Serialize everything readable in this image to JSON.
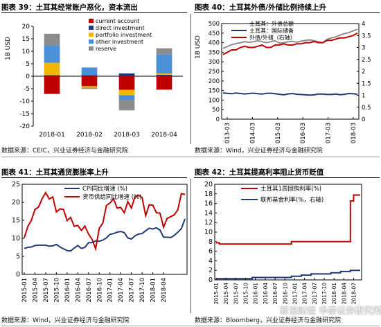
{
  "panels": [
    {
      "id": "p39",
      "title": "图表 39：土耳其经常账户恶化，资本流出",
      "source": "数据来源：CEIC，兴业证券经济与金融研究院"
    },
    {
      "id": "p40",
      "title": "图表 40：土耳其外债/外储比例持续上升",
      "source": "数据来源：Wind，兴业证券经济与金融研究院"
    },
    {
      "id": "p41",
      "title": "图表 41：土耳其通货膨胀率上升",
      "source": "数据来源：Wind，兴业证券经济与金融研究院"
    },
    {
      "id": "p42",
      "title": "图表 42：土耳其提高利率阻止货币贬值",
      "source": "数据来源：Bloomberg，兴业证券经济与金融研究院"
    }
  ],
  "watermark": "新浪财经 华泰证券研究所",
  "chart_data": [
    {
      "type": "bar",
      "stacked": true,
      "ylabel": "1B USD",
      "ylim": [
        -20,
        20
      ],
      "yticks": [
        "20",
        "15",
        "10",
        "5",
        "0",
        "-5",
        "-10",
        "-15",
        "-20"
      ],
      "categories": [
        "2018-01",
        "2018-02",
        "2018-03",
        "2018-04"
      ],
      "legend_position": "top-right",
      "series": [
        {
          "name": "current account",
          "color": "#c00000",
          "values": [
            -7.1,
            -4.0,
            -5.5,
            -5.4
          ]
        },
        {
          "name": "direct investment",
          "color": "#1f3a78",
          "values": [
            0.4,
            0.4,
            1.1,
            0.6
          ]
        },
        {
          "name": "portfolio investment",
          "color": "#f2b800",
          "values": [
            5.0,
            -0.6,
            -2.1,
            0.5
          ]
        },
        {
          "name": "other investment",
          "color": "#4a90d9",
          "values": [
            7.0,
            3.1,
            -2.0,
            7.7
          ]
        },
        {
          "name": "reserve",
          "color": "#8c8c8c",
          "values": [
            4.6,
            -0.5,
            -4.1,
            2.4
          ]
        }
      ]
    },
    {
      "type": "line",
      "ylabel": "1B USD",
      "ylim_left": [
        0,
        500
      ],
      "ylim_right": [
        0,
        4
      ],
      "yticks_left": [
        "500",
        "450",
        "400",
        "350",
        "300",
        "250",
        "200",
        "150",
        "100",
        "50",
        "0"
      ],
      "yticks_right": [
        "4",
        "3.5",
        "3",
        "2.5",
        "2",
        "1.5",
        "1",
        "0.5",
        "0"
      ],
      "xticks": [
        "2013-03",
        "2014-03",
        "2015-03",
        "2016-03",
        "2017-03",
        "2018-03"
      ],
      "series": [
        {
          "name": "土耳其：外债总额",
          "color": "#8c8c8c",
          "axis": "left",
          "values": [
            370,
            380,
            390,
            395,
            400,
            405,
            402,
            405,
            410,
            405,
            400,
            405,
            410,
            398,
            400,
            405,
            407,
            403,
            408,
            412,
            415,
            410,
            405,
            400,
            418,
            425,
            430,
            440,
            447,
            452,
            462,
            470
          ]
        },
        {
          "name": "土耳其：国际储备",
          "color": "#1f3a78",
          "axis": "left",
          "values": [
            137,
            135,
            133,
            137,
            134,
            132,
            134,
            136,
            133,
            131,
            135,
            136,
            133,
            130,
            127,
            132,
            134,
            130,
            129,
            127,
            126,
            127,
            132,
            131,
            129,
            129,
            131,
            128,
            130,
            134,
            133,
            130
          ]
        },
        {
          "name": "外债/外储（右轴）",
          "color": "#c00000",
          "axis": "right",
          "values": [
            2.7,
            2.8,
            2.9,
            2.9,
            3.0,
            3.05,
            3.0,
            3.0,
            3.05,
            3.1,
            3.0,
            3.0,
            3.1,
            3.1,
            3.15,
            3.1,
            3.1,
            3.15,
            3.15,
            3.2,
            3.2,
            3.25,
            3.2,
            3.2,
            3.3,
            3.3,
            3.35,
            3.4,
            3.4,
            3.45,
            3.5,
            3.6
          ]
        }
      ]
    },
    {
      "type": "line",
      "ylim": [
        0,
        25
      ],
      "yticks": [
        "25",
        "20",
        "15",
        "10",
        "5",
        "0"
      ],
      "xticks": [
        "2015-01",
        "2015-04",
        "2015-07",
        "2015-10",
        "2016-01",
        "2016-04",
        "2016-07",
        "2016-10",
        "2017-01",
        "2017-04",
        "2017-07",
        "2017-10",
        "2018-01",
        "2018-04"
      ],
      "series": [
        {
          "name": "CPI同比增速 (%)",
          "color": "#1f3a78",
          "values": [
            7.2,
            7.5,
            7.6,
            8.0,
            8.1,
            8.1,
            8.1,
            7.8,
            7.9,
            8.3,
            7.6,
            7.1,
            6.6,
            6.5,
            7.3,
            8.0,
            7.2,
            7.5,
            8.8,
            8.8,
            9.3,
            9.2,
            9.5,
            10.1,
            11.1,
            11.3,
            11.7,
            11.9,
            11.6,
            10.1,
            9.8,
            10.7,
            11.2,
            11.3,
            12.1,
            12.8,
            12.6,
            12.9,
            12.3,
            10.3,
            10.3,
            10.2,
            10.8,
            11.7,
            12.7,
            15.4
          ]
        },
        {
          "name": "货币供给同比增速 (%)",
          "color": "#c00000",
          "values": [
            10.1,
            13.3,
            15.0,
            18.0,
            18.7,
            21.0,
            22.7,
            20.9,
            21.5,
            17.3,
            18.2,
            18.0,
            14.9,
            15.8,
            13.3,
            13.6,
            12.2,
            13.4,
            11.2,
            9.7,
            7.1,
            12.8,
            14.2,
            19.1,
            19.8,
            21.0,
            18.4,
            18.6,
            17.1,
            20.2,
            18.4,
            21.5,
            22.0,
            21.3,
            16.3,
            19.3,
            19.2,
            17.1,
            17.0,
            13.1,
            15.5,
            16.0,
            16.5,
            17.9,
            22.4,
            22.2
          ]
        }
      ]
    },
    {
      "type": "line",
      "step": true,
      "ylim": [
        0,
        20
      ],
      "yticks": [
        "20",
        "18",
        "16",
        "14",
        "12",
        "10",
        "8",
        "6",
        "4",
        "2",
        "0"
      ],
      "xticks": [
        "2015-01",
        "2015-04",
        "2015-07",
        "2015-10",
        "2016-01",
        "2016-04",
        "2016-07",
        "2016-10",
        "2017-01",
        "2017-04",
        "2017-07",
        "2017-10",
        "2018-01",
        "2018-04",
        "2018-07"
      ],
      "series": [
        {
          "name": "土耳其1周回购利率(%)",
          "color": "#c00000",
          "values": [
            7.75,
            7.5,
            7.5,
            7.5,
            7.5,
            7.5,
            7.5,
            7.5,
            7.5,
            7.5,
            7.5,
            7.5,
            7.5,
            7.5,
            7.5,
            7.5,
            7.5,
            7.5,
            7.5,
            7.5,
            7.5,
            7.5,
            7.5,
            8.0,
            8.0,
            8.0,
            8.0,
            8.0,
            8.0,
            8.0,
            8.0,
            8.0,
            8.0,
            8.0,
            8.0,
            8.0,
            8.0,
            8.0,
            8.0,
            8.0,
            8.0,
            16.5,
            17.75,
            17.75,
            17.75
          ]
        },
        {
          "name": "联邦基金利率(%，右轴)",
          "color": "#1f3a78",
          "values": [
            0.25,
            0.25,
            0.25,
            0.25,
            0.25,
            0.25,
            0.25,
            0.25,
            0.25,
            0.25,
            0.25,
            0.5,
            0.5,
            0.5,
            0.5,
            0.5,
            0.5,
            0.5,
            0.5,
            0.5,
            0.5,
            0.5,
            0.5,
            0.75,
            0.75,
            0.75,
            1.0,
            1.0,
            1.0,
            1.25,
            1.25,
            1.25,
            1.25,
            1.25,
            1.25,
            1.5,
            1.5,
            1.5,
            1.75,
            1.75,
            1.75,
            2.0,
            2.0,
            2.0,
            2.0
          ]
        }
      ]
    }
  ]
}
